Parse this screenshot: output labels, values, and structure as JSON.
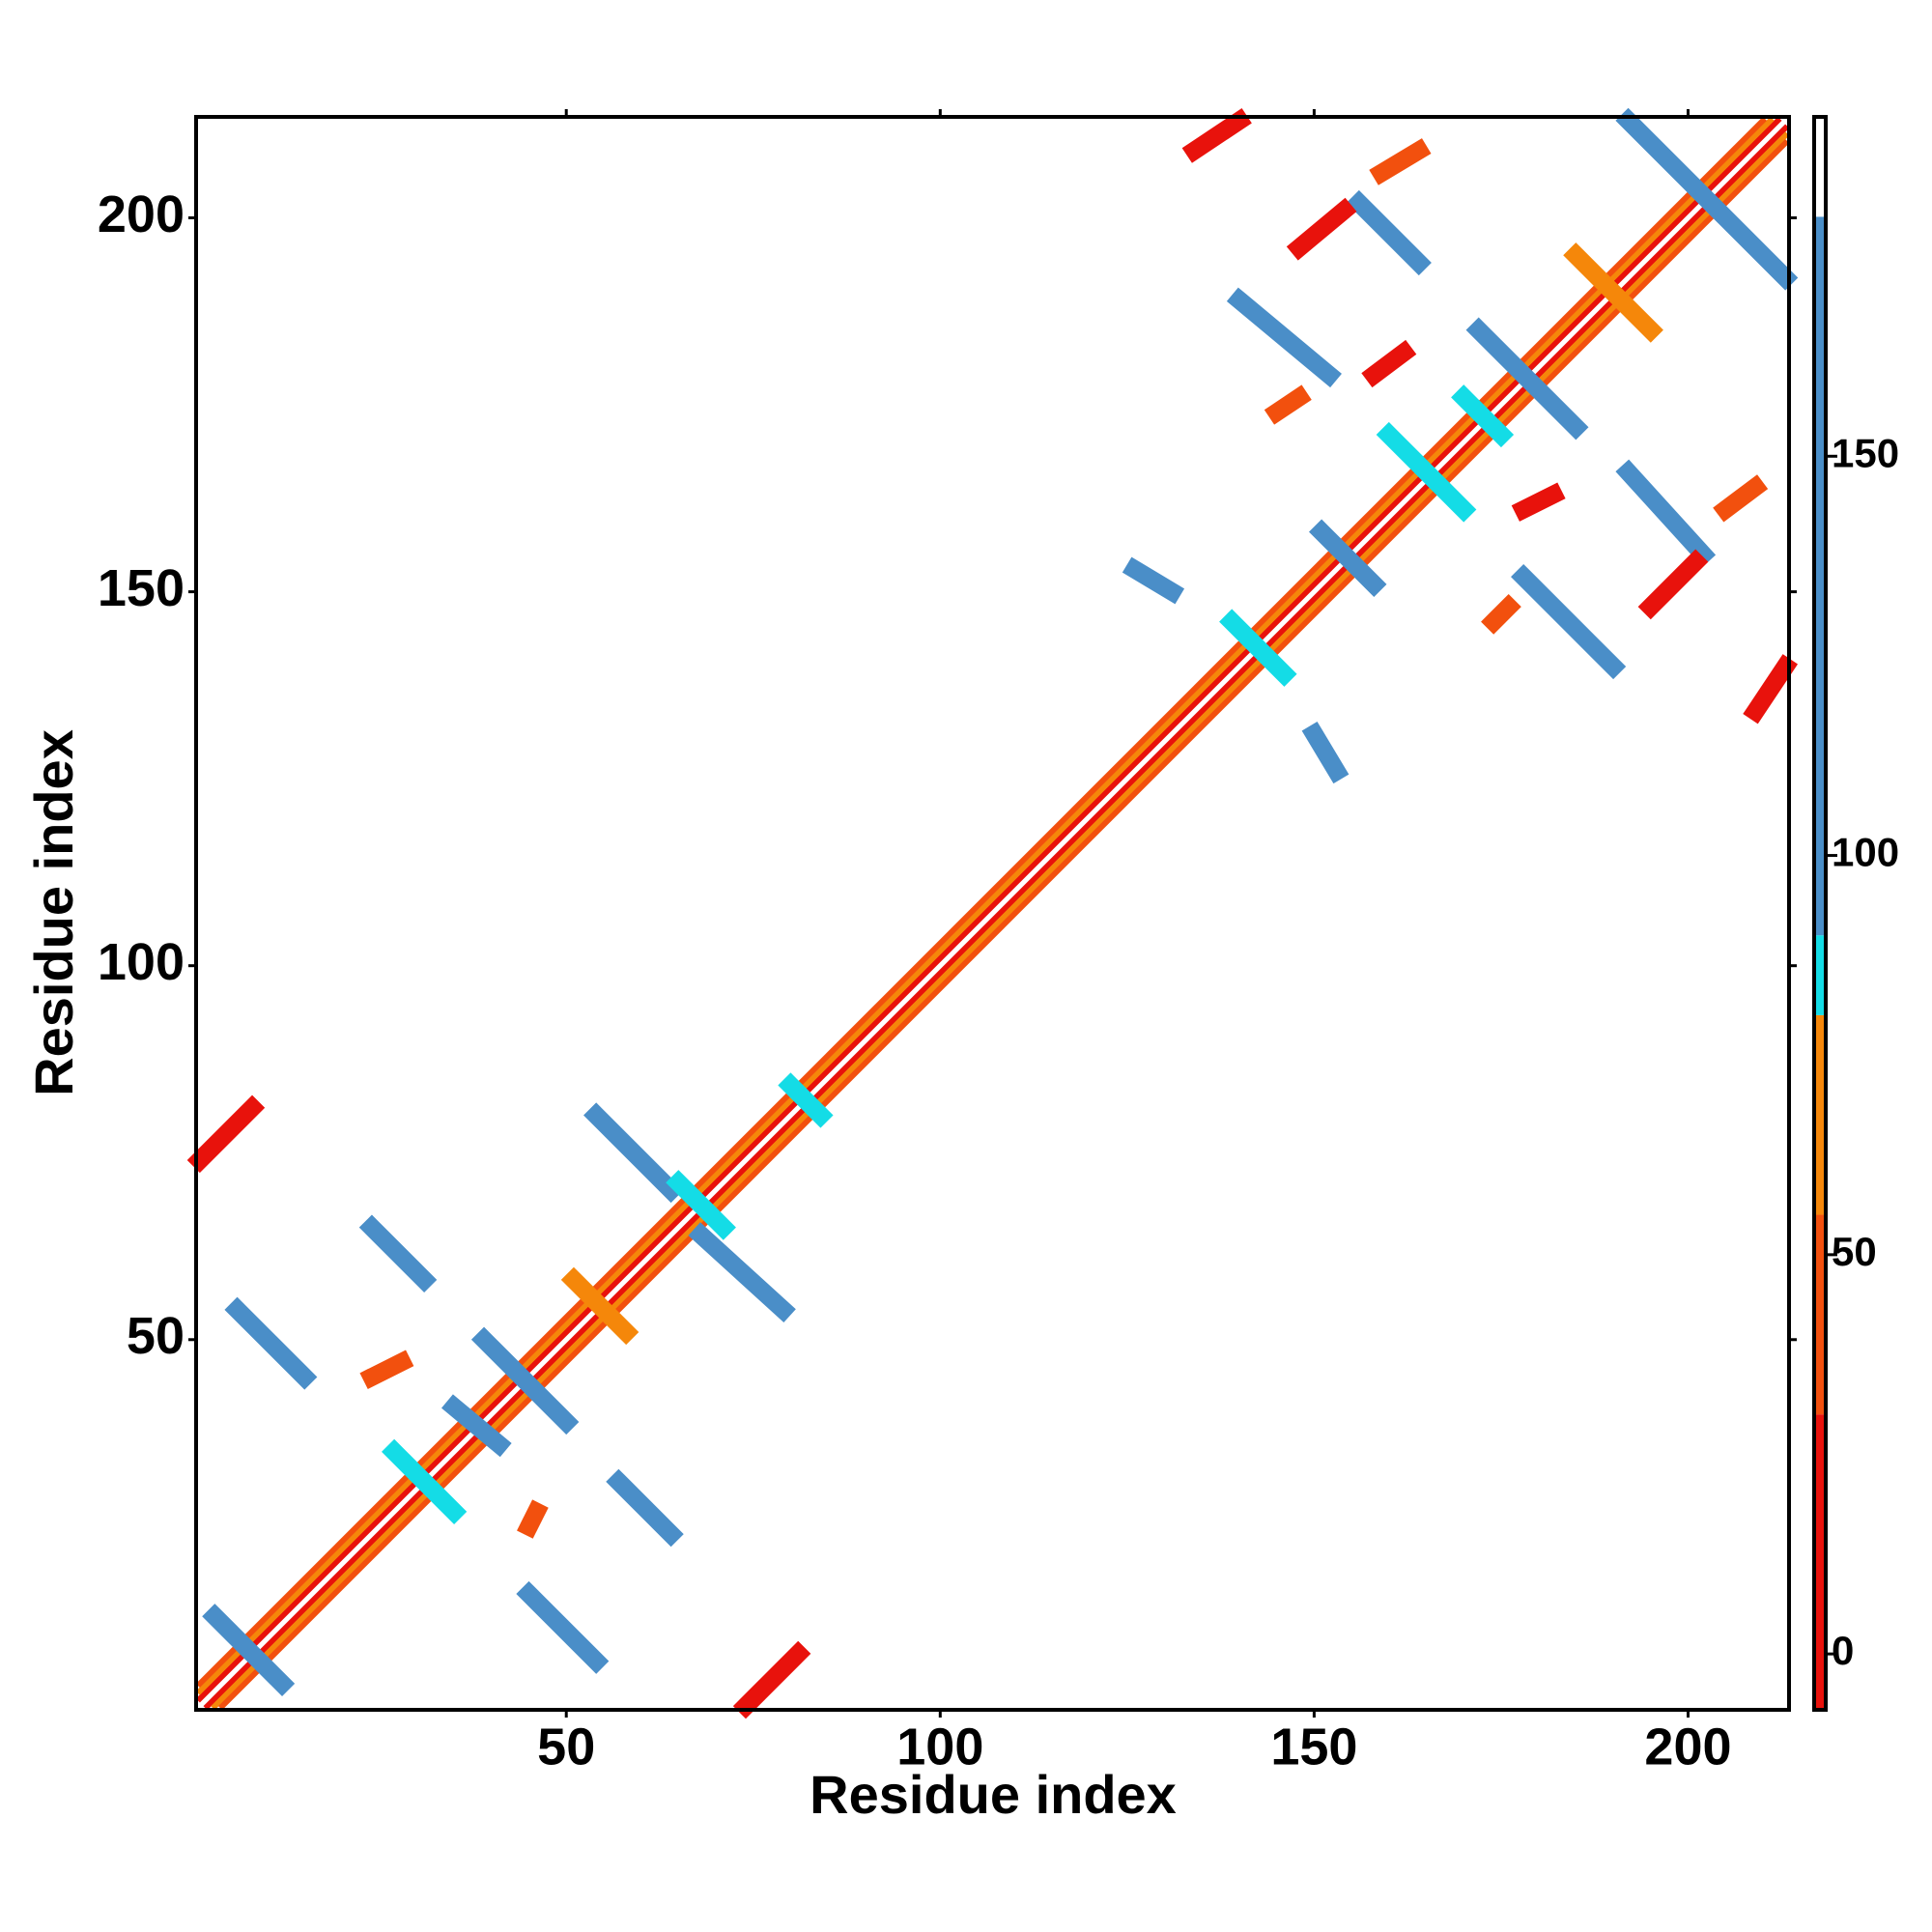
{
  "chart_data": {
    "type": "contact-map",
    "xlabel": "Residue index",
    "ylabel": "Residue index",
    "xlim": [
      0.5,
      213.5
    ],
    "ylim": [
      0.5,
      213.5
    ],
    "xticks": [
      50,
      100,
      150,
      200
    ],
    "yticks": [
      50,
      100,
      150,
      200
    ],
    "colorbar": {
      "clim": [
        -7,
        192.5
      ],
      "ticks": [
        0,
        50,
        100,
        150
      ],
      "bounds": [
        30,
        55,
        80,
        90,
        180
      ],
      "colors": [
        "#e8120c",
        "#f2500e",
        "#f5870a",
        "#14dce6",
        "#4a8ec8",
        "#ffffff"
      ]
    },
    "diagonal": [
      {
        "x0": 2,
        "y0": 1,
        "x1": 213,
        "y1": 212,
        "value": 5
      },
      {
        "x0": 1,
        "y0": 2,
        "x1": 212,
        "y1": 213,
        "value": 5
      },
      {
        "x0": 3,
        "y0": 1,
        "x1": 213,
        "y1": 211,
        "value": 60
      },
      {
        "x0": 1,
        "y0": 3,
        "x1": 211,
        "y1": 213,
        "value": 60
      },
      {
        "x0": 4,
        "y0": 1,
        "x1": 213,
        "y1": 210,
        "value": 40
      },
      {
        "x0": 1,
        "y0": 4,
        "x1": 210,
        "y1": 213,
        "value": 40
      }
    ],
    "contacts": [
      {
        "x0": 6,
        "y0": 54,
        "x1": 15,
        "y1": 45,
        "value": 150
      },
      {
        "x0": 24,
        "y0": 65,
        "x1": 31,
        "y1": 58,
        "value": 150
      },
      {
        "x0": 1,
        "y0": 74,
        "x1": 8,
        "y1": 81,
        "value": 10
      },
      {
        "x0": 54,
        "y0": 80,
        "x1": 64,
        "y1": 70,
        "value": 150
      },
      {
        "x0": 68,
        "y0": 64,
        "x1": 79,
        "y1": 54,
        "value": 150
      },
      {
        "x0": 39,
        "y0": 50,
        "x1": 50,
        "y1": 39,
        "value": 150
      },
      {
        "x0": 35,
        "y0": 41,
        "x1": 41,
        "y1": 36,
        "value": 100
      },
      {
        "x0": 27,
        "y0": 35,
        "x1": 35,
        "y1": 27,
        "value": 85
      },
      {
        "x0": 57,
        "y0": 31,
        "x1": 64,
        "y1": 24,
        "value": 150
      },
      {
        "x0": 45,
        "y0": 16,
        "x1": 54,
        "y1": 7,
        "value": 150
      },
      {
        "x0": 74,
        "y0": 1,
        "x1": 81,
        "y1": 8,
        "value": 5
      },
      {
        "x0": 3,
        "y0": 13,
        "x1": 12,
        "y1": 4,
        "value": 150
      },
      {
        "x0": 51,
        "y0": 58,
        "x1": 58,
        "y1": 51,
        "value": 60
      },
      {
        "x0": 65,
        "y0": 71,
        "x1": 71,
        "y1": 65,
        "value": 85
      },
      {
        "x0": 80,
        "y0": 84,
        "x1": 84,
        "y1": 80,
        "value": 85
      },
      {
        "x0": 24,
        "y0": 45,
        "x1": 28,
        "y1": 47,
        "value": 40
      },
      {
        "x0": 45,
        "y0": 25,
        "x1": 46,
        "y1": 27,
        "value": 45
      },
      {
        "x0": 126,
        "y0": 153,
        "x1": 131,
        "y1": 150,
        "value": 150
      },
      {
        "x0": 150,
        "y0": 131,
        "x1": 153,
        "y1": 126,
        "value": 150
      },
      {
        "x0": 139,
        "y0": 146,
        "x1": 146,
        "y1": 139,
        "value": 85
      },
      {
        "x0": 151,
        "y0": 158,
        "x1": 158,
        "y1": 151,
        "value": 100
      },
      {
        "x0": 160,
        "y0": 171,
        "x1": 170,
        "y1": 161,
        "value": 85
      },
      {
        "x0": 170,
        "y0": 176,
        "x1": 175,
        "y1": 171,
        "value": 85
      },
      {
        "x0": 172,
        "y0": 185,
        "x1": 185,
        "y1": 172,
        "value": 150
      },
      {
        "x0": 192,
        "y0": 213,
        "x1": 213,
        "y1": 192,
        "value": 150
      },
      {
        "x0": 156,
        "y0": 202,
        "x1": 164,
        "y1": 194,
        "value": 150
      },
      {
        "x0": 140,
        "y0": 189,
        "x1": 152,
        "y1": 179,
        "value": 150
      },
      {
        "x0": 178,
        "y0": 152,
        "x1": 190,
        "y1": 140,
        "value": 150
      },
      {
        "x0": 192,
        "y0": 166,
        "x1": 202,
        "y1": 155,
        "value": 150
      },
      {
        "x0": 148,
        "y0": 196,
        "x1": 154,
        "y1": 201,
        "value": 5
      },
      {
        "x0": 134,
        "y0": 209,
        "x1": 140,
        "y1": 213,
        "value": 10
      },
      {
        "x0": 195,
        "y0": 148,
        "x1": 201,
        "y1": 154,
        "value": 5
      },
      {
        "x0": 209,
        "y0": 134,
        "x1": 213,
        "y1": 140,
        "value": 10
      },
      {
        "x0": 159,
        "y0": 206,
        "x1": 164,
        "y1": 209,
        "value": 50
      },
      {
        "x0": 205,
        "y0": 161,
        "x1": 209,
        "y1": 164,
        "value": 50
      },
      {
        "x0": 158,
        "y0": 179,
        "x1": 162,
        "y1": 182,
        "value": 20
      },
      {
        "x0": 178,
        "y0": 161,
        "x1": 182,
        "y1": 163,
        "value": 25
      },
      {
        "x0": 145,
        "y0": 174,
        "x1": 148,
        "y1": 176,
        "value": 45
      },
      {
        "x0": 174,
        "y0": 146,
        "x1": 176,
        "y1": 148,
        "value": 45
      },
      {
        "x0": 185,
        "y0": 195,
        "x1": 195,
        "y1": 185,
        "value": 60
      }
    ]
  }
}
